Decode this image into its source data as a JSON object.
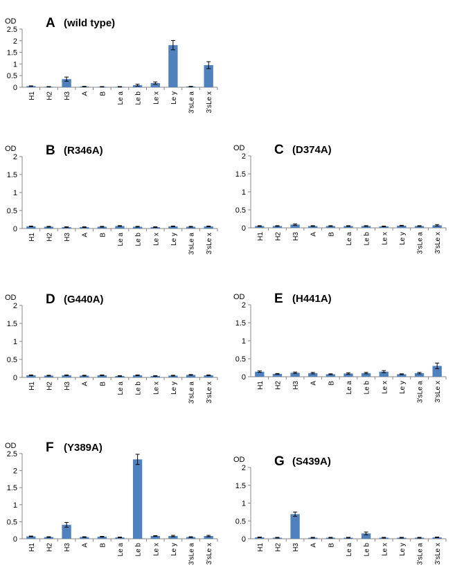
{
  "chart_data": [
    {
      "type": "bar",
      "id": "A",
      "panel_letter": "A",
      "title": "(wild type)",
      "ylabel": "OD",
      "ylim": [
        0,
        2.5
      ],
      "yticks": [
        "0",
        "0.5",
        "1",
        "1.5",
        "2",
        "2.5"
      ],
      "categories": [
        "H1",
        "H2",
        "H3",
        "A",
        "B",
        "Le a",
        "Le b",
        "Le x",
        "Le y",
        "3'sLe a",
        "3'sLe x"
      ],
      "values": [
        0.05,
        0.02,
        0.35,
        0.03,
        0.02,
        0.02,
        0.09,
        0.18,
        1.81,
        0.03,
        0.95
      ],
      "errors": [
        0.01,
        0.01,
        0.09,
        0.01,
        0.01,
        0.01,
        0.04,
        0.05,
        0.2,
        0.01,
        0.15
      ]
    },
    {
      "type": "bar",
      "id": "B",
      "panel_letter": "B",
      "title": "(R346A)",
      "ylabel": "OD",
      "ylim": [
        0,
        2
      ],
      "yticks": [
        "0",
        "0.5",
        "1",
        "1.5",
        "2"
      ],
      "categories": [
        "H1",
        "H2",
        "H3",
        "A",
        "B",
        "Le a",
        "Le b",
        "Le x",
        "Le y",
        "3'sLe a",
        "3'sLe x"
      ],
      "values": [
        0.06,
        0.05,
        0.04,
        0.04,
        0.05,
        0.07,
        0.05,
        0.04,
        0.06,
        0.05,
        0.06
      ],
      "errors": [
        0.01,
        0.01,
        0.01,
        0.01,
        0.01,
        0.01,
        0.01,
        0.01,
        0.01,
        0.01,
        0.01
      ]
    },
    {
      "type": "bar",
      "id": "C",
      "panel_letter": "C",
      "title": "(D374A)",
      "ylabel": "OD",
      "ylim": [
        0,
        2
      ],
      "yticks": [
        "0",
        "0.5",
        "1",
        "1.5",
        "2"
      ],
      "categories": [
        "H1",
        "H2",
        "H3",
        "A",
        "B",
        "Le a",
        "Le b",
        "Le x",
        "Le y",
        "3'sLe a",
        "3'sLe x"
      ],
      "values": [
        0.05,
        0.05,
        0.09,
        0.05,
        0.05,
        0.05,
        0.05,
        0.04,
        0.06,
        0.05,
        0.07
      ],
      "errors": [
        0.01,
        0.01,
        0.02,
        0.01,
        0.01,
        0.01,
        0.01,
        0.01,
        0.01,
        0.01,
        0.02
      ]
    },
    {
      "type": "bar",
      "id": "D",
      "panel_letter": "D",
      "title": "(G440A)",
      "ylabel": "OD",
      "ylim": [
        0,
        2
      ],
      "yticks": [
        "0",
        "0.5",
        "1",
        "1.5",
        "2"
      ],
      "categories": [
        "H1",
        "H2",
        "H3",
        "A",
        "B",
        "Le a",
        "Le b",
        "Le x",
        "Le y",
        "3'sLe a",
        "3'sLe x"
      ],
      "values": [
        0.06,
        0.05,
        0.06,
        0.05,
        0.06,
        0.04,
        0.06,
        0.04,
        0.05,
        0.07,
        0.06
      ],
      "errors": [
        0.01,
        0.01,
        0.01,
        0.01,
        0.01,
        0.01,
        0.01,
        0.01,
        0.01,
        0.01,
        0.01
      ]
    },
    {
      "type": "bar",
      "id": "E",
      "panel_letter": "E",
      "title": "(H441A)",
      "ylabel": "OD",
      "ylim": [
        0,
        2
      ],
      "yticks": [
        "0",
        "0.5",
        "1",
        "1.5",
        "2"
      ],
      "categories": [
        "H1",
        "H2",
        "H3",
        "A",
        "B",
        "Le a",
        "Le b",
        "Le x",
        "Le y",
        "3'sLe a",
        "3'sLe x"
      ],
      "values": [
        0.14,
        0.08,
        0.11,
        0.1,
        0.07,
        0.09,
        0.1,
        0.14,
        0.07,
        0.1,
        0.3
      ],
      "errors": [
        0.02,
        0.01,
        0.02,
        0.02,
        0.01,
        0.02,
        0.02,
        0.03,
        0.01,
        0.02,
        0.08
      ]
    },
    {
      "type": "bar",
      "id": "F",
      "panel_letter": "F",
      "title": "(Y389A)",
      "ylabel": "OD",
      "ylim": [
        0,
        2.5
      ],
      "yticks": [
        "0",
        "0.5",
        "1",
        "1.5",
        "2",
        "2.5"
      ],
      "categories": [
        "H1",
        "H2",
        "H3",
        "A",
        "B",
        "Le a",
        "Le b",
        "Le x",
        "Le y",
        "3'sLe a",
        "3'sLe x"
      ],
      "values": [
        0.07,
        0.05,
        0.41,
        0.05,
        0.06,
        0.04,
        2.33,
        0.08,
        0.08,
        0.05,
        0.08
      ],
      "errors": [
        0.01,
        0.01,
        0.07,
        0.01,
        0.01,
        0.01,
        0.15,
        0.01,
        0.02,
        0.01,
        0.02
      ]
    },
    {
      "type": "bar",
      "id": "G",
      "panel_letter": "G",
      "title": "(S439A)",
      "ylabel": "OD",
      "ylim": [
        0,
        2
      ],
      "yticks": [
        "0",
        "0.5",
        "1",
        "1.5",
        "2"
      ],
      "categories": [
        "H1",
        "H2",
        "H3",
        "A",
        "B",
        "Le a",
        "Le b",
        "Le x",
        "Le y",
        "3'sLe a",
        "3'sLe x"
      ],
      "values": [
        0.04,
        0.03,
        0.69,
        0.03,
        0.03,
        0.03,
        0.15,
        0.03,
        0.03,
        0.03,
        0.04
      ],
      "errors": [
        0.01,
        0.01,
        0.06,
        0.01,
        0.01,
        0.01,
        0.04,
        0.01,
        0.01,
        0.01,
        0.01
      ]
    }
  ]
}
